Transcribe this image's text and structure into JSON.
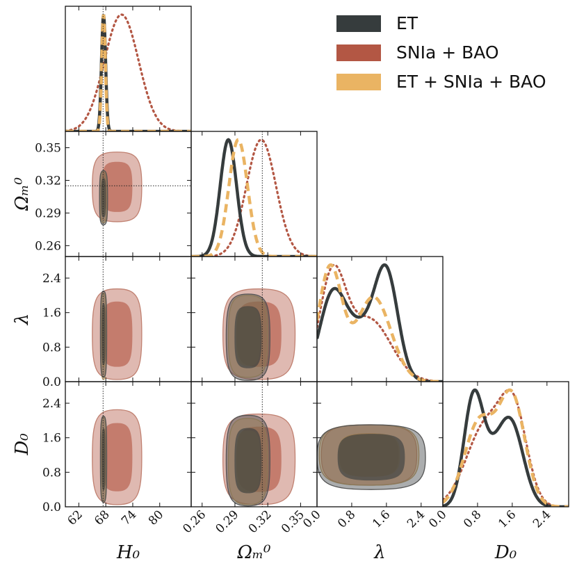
{
  "chart_data": {
    "type": "corner",
    "parameters": [
      {
        "key": "H0",
        "label": "H₀",
        "range": [
          59,
          87
        ],
        "ticks": [
          62,
          68,
          74,
          80
        ],
        "tick_labels": [
          "62",
          "68",
          "74",
          "80"
        ],
        "truth": 67.4
      },
      {
        "key": "Om",
        "label": "Ωₘ⁰",
        "range": [
          0.25,
          0.365
        ],
        "ticks": [
          0.26,
          0.29,
          0.32,
          0.35
        ],
        "tick_labels": [
          "0.26",
          "0.29",
          "0.32",
          "0.35"
        ],
        "truth": 0.315
      },
      {
        "key": "lam",
        "label": "λ",
        "range": [
          0.0,
          2.9
        ],
        "ticks": [
          0.0,
          0.8,
          1.6,
          2.4
        ],
        "tick_labels": [
          "0.0",
          "0.8",
          "1.6",
          "2.4"
        ],
        "truth": null
      },
      {
        "key": "D0",
        "label": "D₀",
        "range": [
          0.0,
          2.9
        ],
        "ticks": [
          0.0,
          0.8,
          1.6,
          2.4
        ],
        "tick_labels": [
          "0.0",
          "0.8",
          "1.6",
          "2.4"
        ],
        "truth": null
      }
    ],
    "series": [
      {
        "name": "ET",
        "color": "#363c3d",
        "line": "solid",
        "marginals": {
          "H0": {
            "peaks": [
              {
                "mu": 67.5,
                "sigma": 0.45,
                "amp": 1.0
              }
            ]
          },
          "Om": {
            "peaks": [
              {
                "mu": 0.284,
                "sigma": 0.0075,
                "amp": 1.0
              }
            ]
          },
          "lam": {
            "peaks": [
              {
                "mu": 0.35,
                "sigma": 0.3,
                "amp": 0.78
              },
              {
                "mu": 1.6,
                "sigma": 0.27,
                "amp": 0.98
              },
              {
                "mu": 1.0,
                "sigma": 0.35,
                "amp": 0.45
              }
            ]
          },
          "D0": {
            "peaks": [
              {
                "mu": 0.7,
                "sigma": 0.22,
                "amp": 1.0
              },
              {
                "mu": 1.6,
                "sigma": 0.28,
                "amp": 0.72
              },
              {
                "mu": 1.15,
                "sigma": 0.3,
                "amp": 0.4
              }
            ]
          }
        },
        "regions": {
          "H0-Om": {
            "center": [
              67.5,
              0.304
            ],
            "half_width": [
              0.9,
              0.025
            ]
          },
          "H0-lam": {
            "center": [
              67.5,
              1.1
            ],
            "half_width": [
              0.7,
              1.0
            ]
          },
          "Om-lam": {
            "center": [
              0.302,
              1.03
            ],
            "half_width": [
              0.02,
              1.0
            ]
          },
          "H0-D0": {
            "center": [
              67.5,
              1.1
            ],
            "half_width": [
              0.7,
              1.0
            ]
          },
          "Om-D0": {
            "center": [
              0.302,
              1.07
            ],
            "half_width": [
              0.02,
              1.05
            ]
          },
          "lam-D0": {
            "center": [
              1.25,
              1.15
            ],
            "half_width": [
              1.25,
              0.75
            ]
          }
        }
      },
      {
        "name": "SNIa + BAO",
        "color": "#b35744",
        "line": "dotted",
        "marginals": {
          "H0": {
            "peaks": [
              {
                "mu": 71.5,
                "sigma": 3.8,
                "amp": 1.0
              }
            ]
          },
          "Om": {
            "peaks": [
              {
                "mu": 0.314,
                "sigma": 0.0135,
                "amp": 1.0
              }
            ]
          },
          "lam": {
            "peaks": [
              {
                "mu": 0.35,
                "sigma": 0.3,
                "amp": 1.0
              },
              {
                "mu": 1.2,
                "sigma": 0.5,
                "amp": 0.62
              }
            ]
          },
          "D0": {
            "peaks": [
              {
                "mu": 1.0,
                "sigma": 0.45,
                "amp": 0.75
              },
              {
                "mu": 1.65,
                "sigma": 0.3,
                "amp": 0.75
              }
            ]
          }
        },
        "regions": {
          "H0-Om": {
            "center": [
              70.5,
              0.314
            ],
            "half_width": [
              5.5,
              0.032
            ]
          },
          "H0-lam": {
            "center": [
              70.5,
              1.1
            ],
            "half_width": [
              5.5,
              1.05
            ]
          },
          "Om-lam": {
            "center": [
              0.312,
              1.1
            ],
            "half_width": [
              0.033,
              1.05
            ]
          },
          "H0-D0": {
            "center": [
              70.5,
              1.15
            ],
            "half_width": [
              5.5,
              1.1
            ]
          },
          "Om-D0": {
            "center": [
              0.312,
              1.1
            ],
            "half_width": [
              0.033,
              1.05
            ]
          },
          "lam-D0": {
            "center": [
              1.2,
              1.2
            ],
            "half_width": [
              1.1,
              0.7
            ]
          }
        }
      },
      {
        "name": "ET + SNIa + BAO",
        "color": "#eab463",
        "line": "dashed",
        "marginals": {
          "H0": {
            "peaks": [
              {
                "mu": 67.5,
                "sigma": 0.4,
                "amp": 1.0
              }
            ]
          },
          "Om": {
            "peaks": [
              {
                "mu": 0.293,
                "sigma": 0.0085,
                "amp": 1.0
              }
            ]
          },
          "lam": {
            "peaks": [
              {
                "mu": 0.3,
                "sigma": 0.27,
                "amp": 1.0
              },
              {
                "mu": 1.3,
                "sigma": 0.4,
                "amp": 0.75
              }
            ]
          },
          "D0": {
            "peaks": [
              {
                "mu": 0.85,
                "sigma": 0.35,
                "amp": 0.68
              },
              {
                "mu": 1.6,
                "sigma": 0.3,
                "amp": 0.85
              }
            ]
          }
        },
        "regions": {
          "H0-Om": {
            "center": [
              67.5,
              0.305
            ],
            "half_width": [
              0.75,
              0.024
            ]
          },
          "H0-lam": {
            "center": [
              67.5,
              1.05
            ],
            "half_width": [
              0.6,
              1.0
            ]
          },
          "Om-lam": {
            "center": [
              0.302,
              1.05
            ],
            "half_width": [
              0.018,
              0.95
            ]
          },
          "H0-D0": {
            "center": [
              67.5,
              1.1
            ],
            "half_width": [
              0.6,
              1.0
            ]
          },
          "Om-D0": {
            "center": [
              0.302,
              1.05
            ],
            "half_width": [
              0.018,
              1.0
            ]
          },
          "lam-D0": {
            "center": [
              1.2,
              1.2
            ],
            "half_width": [
              1.15,
              0.7
            ]
          }
        }
      }
    ],
    "legend": {
      "position": "top-right",
      "entries": [
        "ET",
        "SNIa + BAO",
        "ET + SNIa + BAO"
      ]
    },
    "title": "",
    "grid": false
  }
}
